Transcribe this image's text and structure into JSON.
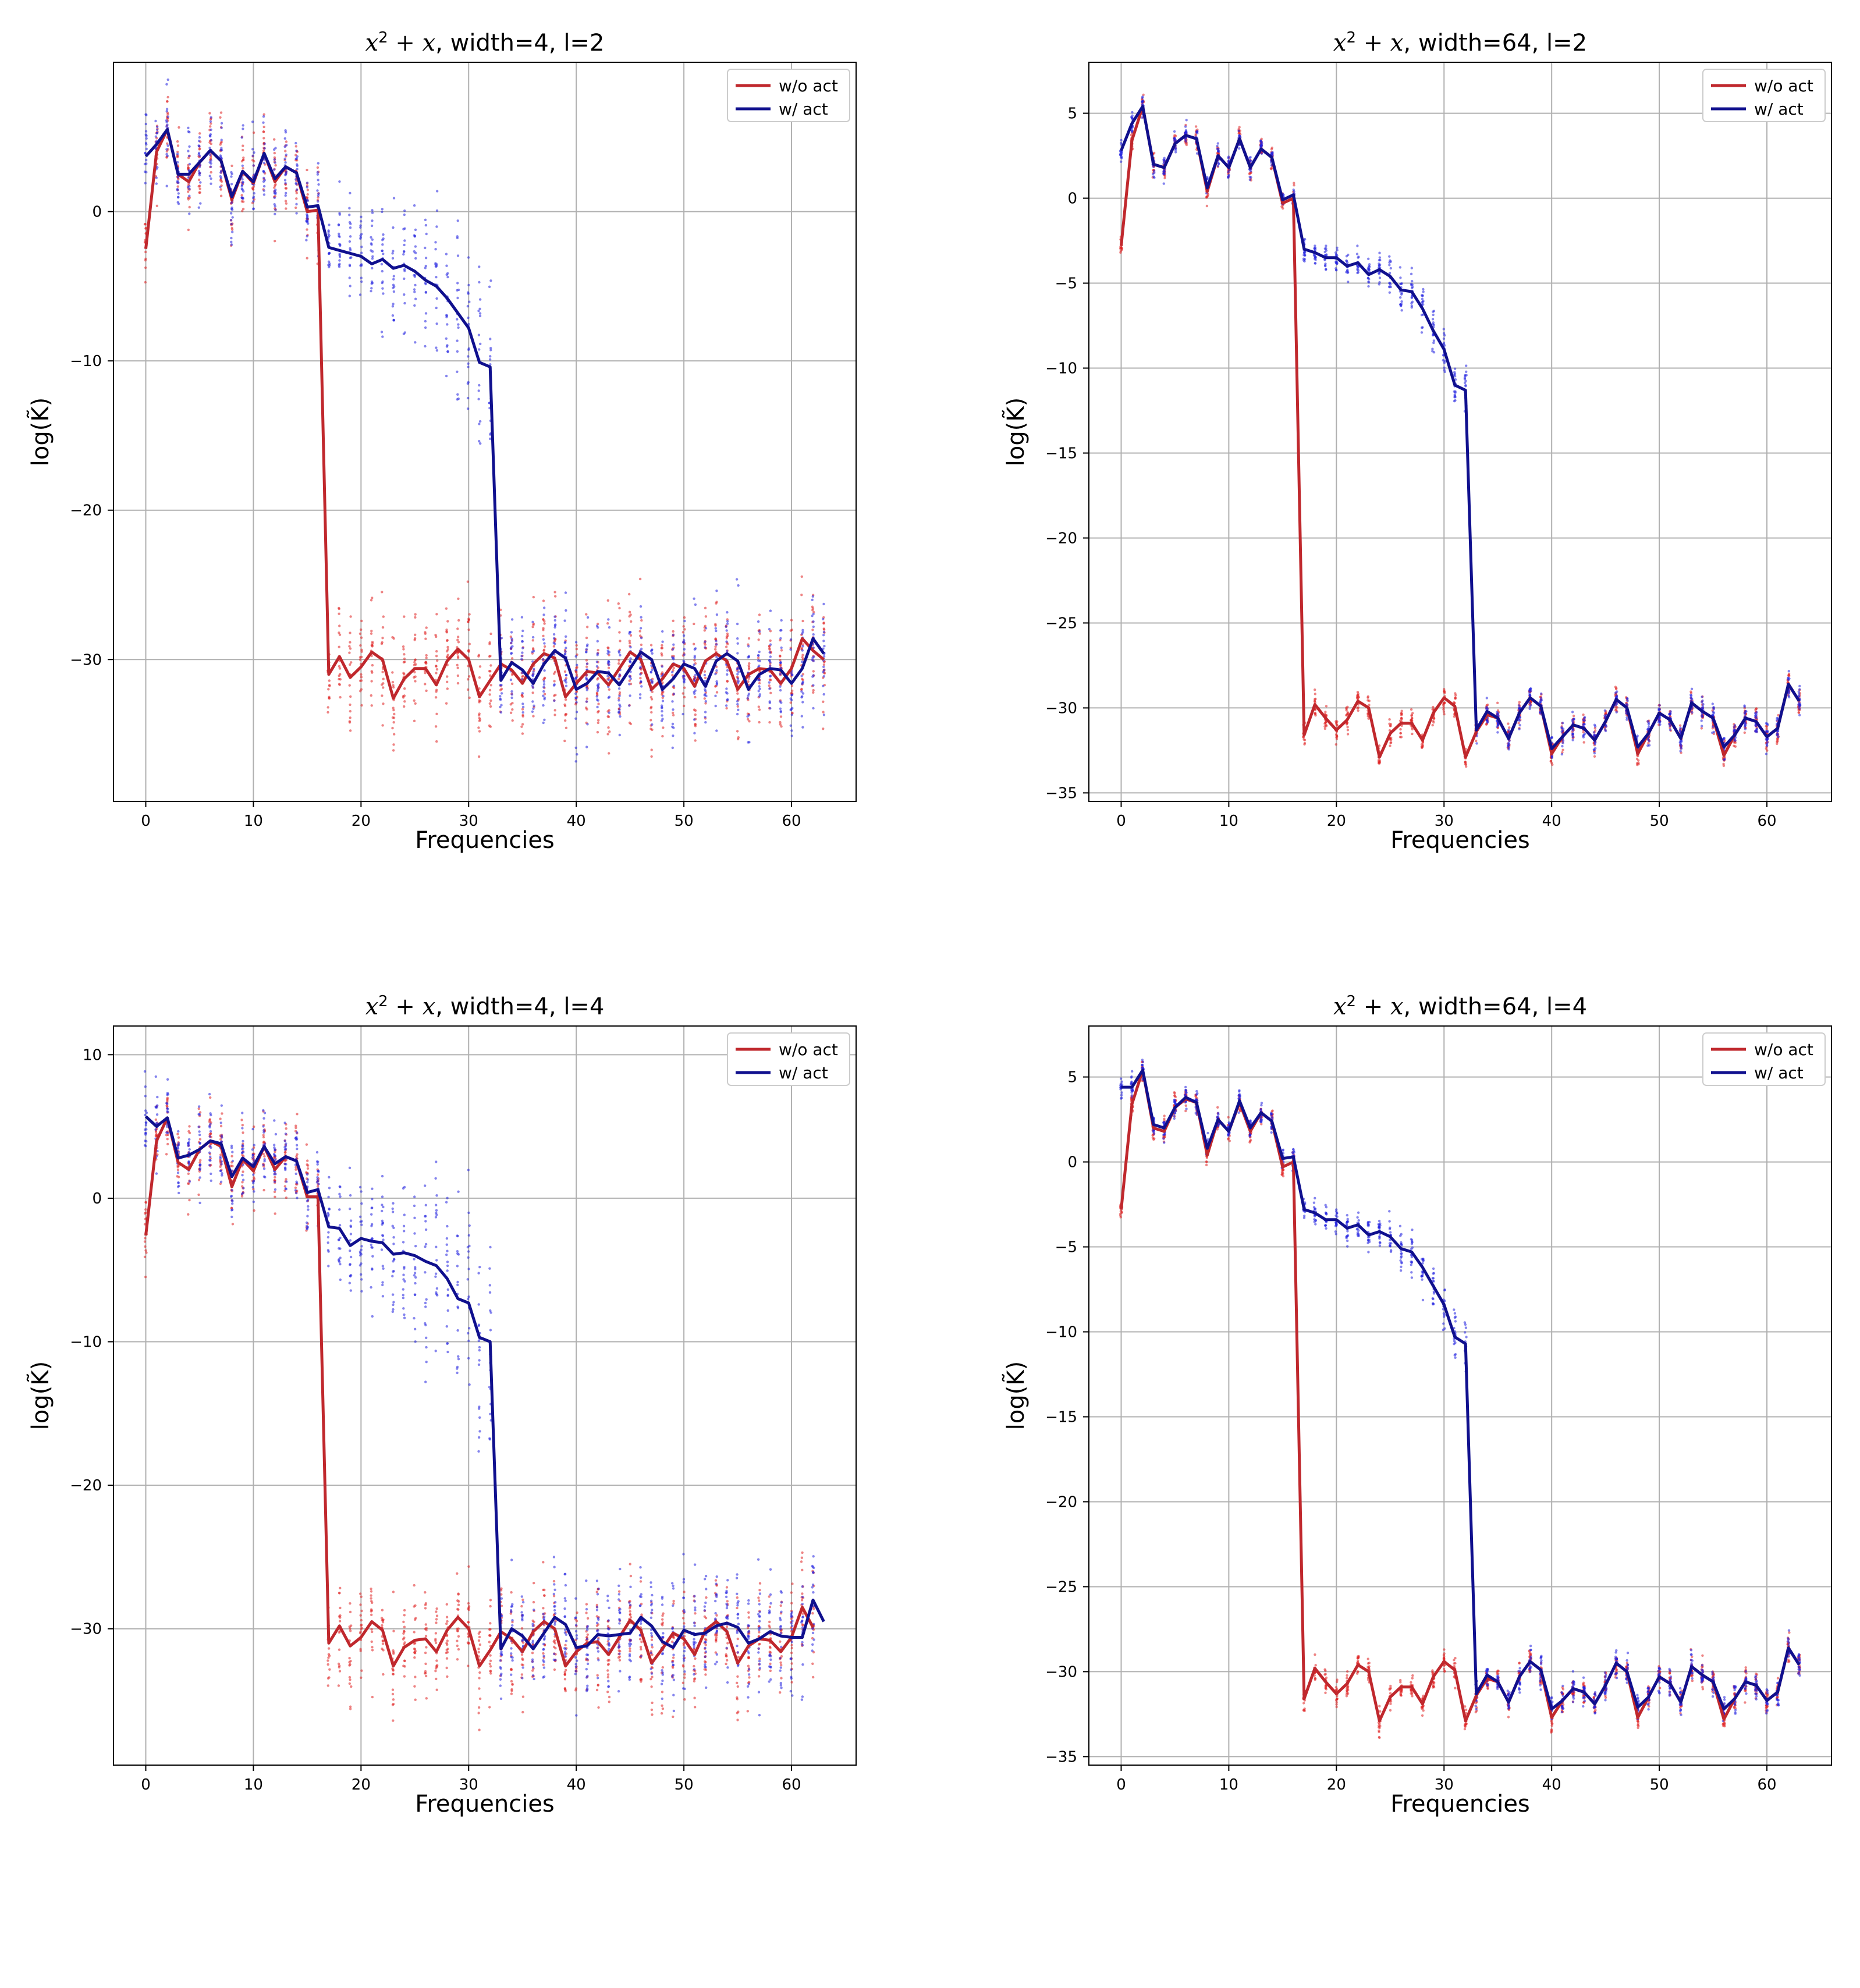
{
  "figure": {
    "legend_location": "upper right",
    "grid": true
  },
  "chart_data": [
    {
      "id": "p11",
      "type": "line",
      "title_math": "x",
      "title_sup": "2",
      "title_math2": " + x",
      "title_text": ", width=4, l=2",
      "xlabel": "Frequencies",
      "ylabel": "log(K̃)",
      "xlim": [
        -3,
        66
      ],
      "ylim": [
        -39.5,
        10
      ],
      "xticks": [
        0,
        10,
        20,
        30,
        40,
        50,
        60
      ],
      "yticks": [
        0,
        -10,
        -20,
        -30
      ],
      "ytick_labels": [
        "0",
        "−10",
        "−20",
        "−30"
      ],
      "legend": [
        "w/o act",
        "w/ act"
      ],
      "scatter_spread": [
        2.5,
        2.5,
        3.5
      ],
      "series": [
        {
          "name": "w/o act",
          "color": "#c0282d",
          "values": [
            -2.5,
            4,
            5.5,
            2.5,
            2,
            3.3,
            4.1,
            3.4,
            0.8,
            2.7,
            1.9,
            3.9,
            2,
            3,
            2.6,
            0,
            0.1,
            -31,
            -29.8,
            -31.2,
            -30.5,
            -29.5,
            -30,
            -32.6,
            -31.3,
            -30.6,
            -30.6,
            -31.7,
            -30.1,
            -29.3,
            -30,
            -32.5,
            -31.4,
            -30.3,
            -30.7,
            -31.6,
            -30.3,
            -29.6,
            -29.9,
            -32.5,
            -31.6,
            -30.8,
            -30.9,
            -31.7,
            -30.6,
            -29.5,
            -30,
            -32,
            -31.3,
            -30.3,
            -30.6,
            -31.8,
            -30.1,
            -29.6,
            -30.1,
            -32,
            -31,
            -30.6,
            -30.7,
            -31.6,
            -30.6,
            -28.6,
            -29.4,
            -30
          ]
        },
        {
          "name": "w/ act",
          "color": "#10108e",
          "values": [
            3.7,
            4.5,
            5.5,
            2.5,
            2.5,
            3.3,
            4.1,
            3.4,
            1,
            2.7,
            2,
            3.9,
            2.2,
            3,
            2.6,
            0.3,
            0.4,
            -2.4,
            -2.6,
            -2.8,
            -3,
            -3.5,
            -3.2,
            -3.8,
            -3.6,
            -4,
            -4.6,
            -5,
            -5.8,
            -6.8,
            -7.8,
            -10.1,
            -10.4,
            -31.4,
            -30.2,
            -30.7,
            -31.6,
            -30.3,
            -29.4,
            -29.9,
            -32,
            -31.6,
            -30.8,
            -30.9,
            -31.7,
            -30.6,
            -29.5,
            -30,
            -32,
            -31.3,
            -30.3,
            -30.6,
            -31.8,
            -30.1,
            -29.6,
            -30.1,
            -32,
            -31,
            -30.6,
            -30.7,
            -31.6,
            -30.6,
            -28.6,
            -29.6
          ]
        }
      ]
    },
    {
      "id": "p12",
      "type": "line",
      "title_math": "x",
      "title_sup": "2",
      "title_math2": " + x",
      "title_text": ", width=64, l=2",
      "xlabel": "Frequencies",
      "ylabel": "log(K̃)",
      "xlim": [
        -3,
        66
      ],
      "ylim": [
        -35.5,
        8
      ],
      "xticks": [
        0,
        10,
        20,
        30,
        40,
        50,
        60
      ],
      "yticks": [
        5,
        0,
        -5,
        -10,
        -15,
        -20,
        -25,
        -30,
        -35
      ],
      "ytick_labels": [
        "5",
        "0",
        "−5",
        "−10",
        "−15",
        "−20",
        "−25",
        "−30",
        "−35"
      ],
      "legend": [
        "w/o act",
        "w/ act"
      ],
      "scatter_spread": [
        0.6,
        0.6,
        0.7
      ],
      "series": [
        {
          "name": "w/o act",
          "color": "#c0282d",
          "values": [
            -2.8,
            3.4,
            5.4,
            2,
            1.8,
            3.2,
            3.7,
            3.5,
            0.4,
            2.5,
            1.8,
            3.5,
            1.8,
            2.9,
            2.4,
            -0.3,
            0,
            -31.6,
            -29.8,
            -30.6,
            -31.3,
            -30.7,
            -29.6,
            -30,
            -32.9,
            -31.5,
            -30.9,
            -30.9,
            -31.9,
            -30.3,
            -29.4,
            -29.9,
            -32.9,
            -31.4,
            -30.4,
            -30.6,
            -31.8,
            -30.3,
            -29.4,
            -29.9,
            -32.7,
            -31.7,
            -31,
            -31.2,
            -31.9,
            -30.8,
            -29.5,
            -30,
            -32.7,
            -31.5,
            -30.3,
            -30.7,
            -31.8,
            -29.7,
            -30.2,
            -30.6,
            -32.8,
            -31.6,
            -30.6,
            -30.8,
            -31.7,
            -31.2,
            -28.6,
            -29.6
          ]
        },
        {
          "name": "w/ act",
          "color": "#10108e",
          "values": [
            2.8,
            4.4,
            5.4,
            2,
            1.8,
            3.2,
            3.7,
            3.5,
            0.6,
            2.5,
            1.8,
            3.5,
            1.8,
            2.9,
            2.4,
            -0.1,
            0.2,
            -3,
            -3.2,
            -3.5,
            -3.5,
            -4,
            -3.8,
            -4.5,
            -4.2,
            -4.6,
            -5.4,
            -5.5,
            -6.5,
            -7.8,
            -8.9,
            -11,
            -11.3,
            -31.3,
            -30.2,
            -30.6,
            -31.8,
            -30.3,
            -29.4,
            -29.9,
            -32.4,
            -31.7,
            -31,
            -31.2,
            -31.9,
            -30.8,
            -29.5,
            -30,
            -32.3,
            -31.5,
            -30.3,
            -30.7,
            -31.8,
            -29.7,
            -30.2,
            -30.6,
            -32.3,
            -31.6,
            -30.6,
            -30.8,
            -31.7,
            -31.2,
            -28.6,
            -29.6
          ]
        }
      ]
    },
    {
      "id": "p21",
      "type": "line",
      "title_math": "x",
      "title_sup": "2",
      "title_math2": " + x",
      "title_text": ", width=4, l=4",
      "xlabel": "Frequencies",
      "ylabel": "log(K̃)",
      "xlim": [
        -3,
        66
      ],
      "ylim": [
        -39.5,
        12
      ],
      "xticks": [
        0,
        10,
        20,
        30,
        40,
        50,
        60
      ],
      "yticks": [
        10,
        0,
        -10,
        -20,
        -30
      ],
      "ytick_labels": [
        "10",
        "0",
        "−10",
        "−20",
        "−30"
      ],
      "legend": [
        "w/o act",
        "w/ act"
      ],
      "scatter_spread": [
        2.5,
        3,
        3.5
      ],
      "series": [
        {
          "name": "w/o act",
          "color": "#c0282d",
          "values": [
            -2.6,
            4,
            5.6,
            2.5,
            2,
            3.4,
            4,
            3.6,
            0.8,
            2.7,
            1.9,
            3.6,
            2,
            2.9,
            2.6,
            0.1,
            0.1,
            -31,
            -29.8,
            -31.2,
            -30.6,
            -29.5,
            -30.1,
            -32.6,
            -31.3,
            -30.8,
            -30.7,
            -31.6,
            -30.1,
            -29.2,
            -30,
            -32.6,
            -31.5,
            -30.2,
            -30.7,
            -31.6,
            -30.2,
            -29.5,
            -30,
            -32.6,
            -31.6,
            -31,
            -30.9,
            -31.8,
            -30.6,
            -29.4,
            -30.1,
            -32.4,
            -31.4,
            -30.3,
            -30.7,
            -31.8,
            -30.1,
            -29.5,
            -30.2,
            -32.4,
            -31.2,
            -30.7,
            -30.8,
            -31.6,
            -30.6,
            -28.5,
            -29.9
          ]
        },
        {
          "name": "w/ act",
          "color": "#10108e",
          "values": [
            5.7,
            5,
            5.6,
            2.8,
            3,
            3.4,
            4,
            3.8,
            1.5,
            2.8,
            2.2,
            3.6,
            2.4,
            2.9,
            2.6,
            0.4,
            0.6,
            -2,
            -2.1,
            -3.3,
            -2.8,
            -3,
            -3.1,
            -3.9,
            -3.8,
            -4,
            -4.4,
            -4.7,
            -5.6,
            -7,
            -7.3,
            -9.7,
            -10,
            -31.4,
            -30,
            -30.5,
            -31.4,
            -30.3,
            -29.2,
            -29.7,
            -31.3,
            -31.2,
            -30.4,
            -30.5,
            -30.4,
            -30.3,
            -29.2,
            -29.8,
            -30.9,
            -31.3,
            -30.1,
            -30.4,
            -30.3,
            -29.8,
            -29.6,
            -29.9,
            -31,
            -30.7,
            -30.2,
            -30.5,
            -30.6,
            -30.6,
            -28,
            -29.5
          ]
        }
      ]
    },
    {
      "id": "p22",
      "type": "line",
      "title_math": "x",
      "title_sup": "2",
      "title_math2": " + x",
      "title_text": ", width=64, l=4",
      "xlabel": "Frequencies",
      "ylabel": "log(K̃)",
      "xlim": [
        -3,
        66
      ],
      "ylim": [
        -35.5,
        8
      ],
      "xticks": [
        0,
        10,
        20,
        30,
        40,
        50,
        60
      ],
      "yticks": [
        5,
        0,
        -5,
        -10,
        -15,
        -20,
        -25,
        -30,
        -35
      ],
      "ytick_labels": [
        "5",
        "0",
        "−5",
        "−10",
        "−15",
        "−20",
        "−25",
        "−30",
        "−35"
      ],
      "legend": [
        "w/o act",
        "w/ act"
      ],
      "scatter_spread": [
        0.6,
        0.6,
        0.7
      ],
      "series": [
        {
          "name": "w/o act",
          "color": "#c0282d",
          "values": [
            -2.8,
            3.4,
            5.4,
            2,
            1.8,
            3.2,
            3.7,
            3.5,
            0.4,
            2.5,
            1.8,
            3.5,
            1.8,
            2.9,
            2.4,
            -0.3,
            0,
            -31.6,
            -29.8,
            -30.6,
            -31.3,
            -30.7,
            -29.6,
            -30,
            -32.9,
            -31.5,
            -30.9,
            -30.9,
            -31.9,
            -30.3,
            -29.4,
            -29.9,
            -32.9,
            -31.4,
            -30.4,
            -30.6,
            -31.8,
            -30.3,
            -29.4,
            -29.9,
            -32.7,
            -31.7,
            -31,
            -31.2,
            -31.9,
            -30.8,
            -29.5,
            -30,
            -32.7,
            -31.5,
            -30.3,
            -30.7,
            -31.8,
            -29.7,
            -30.2,
            -30.6,
            -32.8,
            -31.6,
            -30.6,
            -30.8,
            -31.7,
            -31.2,
            -28.6,
            -29.6
          ]
        },
        {
          "name": "w/ act",
          "color": "#10108e",
          "values": [
            4.4,
            4.4,
            5.4,
            2.2,
            2,
            3.2,
            3.8,
            3.5,
            0.8,
            2.5,
            1.8,
            3.6,
            2,
            2.9,
            2.4,
            0.2,
            0.3,
            -2.8,
            -3,
            -3.4,
            -3.4,
            -3.9,
            -3.7,
            -4.3,
            -4.1,
            -4.4,
            -5.1,
            -5.3,
            -6.2,
            -7.3,
            -8.4,
            -10.3,
            -10.7,
            -31.3,
            -30.2,
            -30.6,
            -31.8,
            -30.3,
            -29.4,
            -29.9,
            -32.2,
            -31.7,
            -31,
            -31.2,
            -31.9,
            -30.8,
            -29.5,
            -30,
            -32.1,
            -31.5,
            -30.3,
            -30.7,
            -31.8,
            -29.7,
            -30.2,
            -30.6,
            -32.2,
            -31.6,
            -30.6,
            -30.8,
            -31.7,
            -31.2,
            -28.6,
            -29.6
          ]
        }
      ]
    }
  ]
}
